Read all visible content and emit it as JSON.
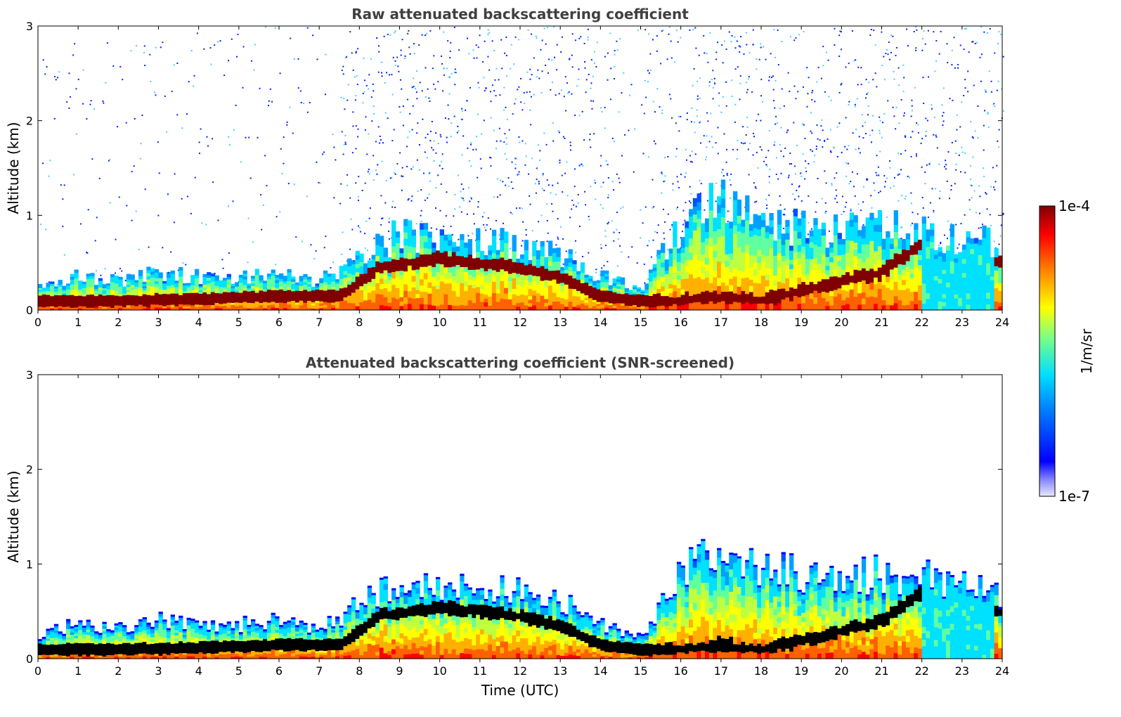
{
  "chart_data": [
    {
      "type": "heatmap",
      "title": "Raw attenuated backscattering coefficient",
      "xlabel": "",
      "ylabel": "Altitude (km)",
      "xlim": [
        0,
        24
      ],
      "ylim": [
        0,
        3
      ],
      "x_ticks": [
        "0",
        "1",
        "2",
        "3",
        "4",
        "5",
        "6",
        "7",
        "8",
        "9",
        "10",
        "11",
        "12",
        "13",
        "14",
        "15",
        "16",
        "17",
        "18",
        "19",
        "20",
        "21",
        "22",
        "23",
        "24"
      ],
      "y_ticks": [
        "0",
        "1",
        "2",
        "3"
      ],
      "z_scale": "log",
      "z_range": [
        1e-07,
        0.0001
      ],
      "boundary_layer_top_km": {
        "x": [
          0,
          1,
          2,
          3,
          4,
          5,
          6,
          7,
          8,
          9,
          10,
          11,
          12,
          13,
          14,
          15,
          16,
          17,
          18,
          19,
          20,
          21,
          22,
          23,
          24
        ],
        "y": [
          0.25,
          0.35,
          0.3,
          0.4,
          0.35,
          0.35,
          0.4,
          0.3,
          0.55,
          0.8,
          0.75,
          0.7,
          0.7,
          0.6,
          0.35,
          0.25,
          0.85,
          1.2,
          0.9,
          0.9,
          0.85,
          0.9,
          0.85,
          0.75,
          0.7
        ]
      },
      "high_signal_layer_km": {
        "x": [
          0,
          2,
          4,
          6,
          7.5,
          8.5,
          10,
          11,
          12,
          13,
          14,
          15,
          16,
          17,
          18,
          19,
          20,
          21,
          22,
          23,
          24
        ],
        "y": [
          0.1,
          0.1,
          0.12,
          0.15,
          0.15,
          0.45,
          0.55,
          0.5,
          0.45,
          0.35,
          0.15,
          0.1,
          0.1,
          0.15,
          0.1,
          0.2,
          0.3,
          0.4,
          0.7,
          0.6,
          0.5
        ]
      }
    },
    {
      "type": "heatmap",
      "title": "Attenuated backscattering coefficient (SNR-screened)",
      "xlabel": "Time (UTC)",
      "ylabel": "Altitude (km)",
      "xlim": [
        0,
        24
      ],
      "ylim": [
        0,
        3
      ],
      "x_ticks": [
        "0",
        "1",
        "2",
        "3",
        "4",
        "5",
        "6",
        "7",
        "8",
        "9",
        "10",
        "11",
        "12",
        "13",
        "14",
        "15",
        "16",
        "17",
        "18",
        "19",
        "20",
        "21",
        "22",
        "23",
        "24"
      ],
      "y_ticks": [
        "0",
        "1",
        "2",
        "3"
      ],
      "z_scale": "log",
      "z_range": [
        1e-07,
        0.0001
      ]
    }
  ],
  "colorbar": {
    "label": "1/m/sr",
    "max_label": "1e-4",
    "min_label": "1e-7",
    "colormap": "jet"
  }
}
